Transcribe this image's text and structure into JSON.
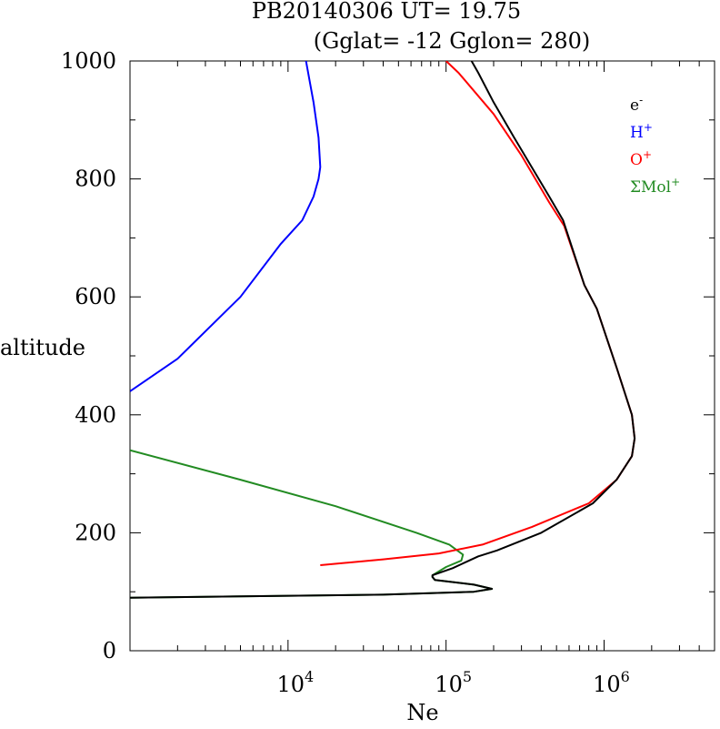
{
  "chart_data": {
    "type": "line",
    "title": "PB20140306   UT=  19.75",
    "subtitle": "(Gglat= -12   Gglon=  280)",
    "xlabel": "Ne",
    "ylabel": "altitude",
    "x_scale": "log",
    "xlim": [
      1000,
      5000000
    ],
    "ylim": [
      0,
      1000
    ],
    "y_ticks": [
      0,
      200,
      400,
      600,
      800,
      1000
    ],
    "y_tick_labels": [
      "0",
      "200",
      "400",
      "600",
      "800",
      "1000"
    ],
    "x_ticks": [
      {
        "value": 10000,
        "base": "10",
        "exp": "4"
      },
      {
        "value": 100000,
        "base": "10",
        "exp": "5"
      },
      {
        "value": 1000000,
        "base": "10",
        "exp": "6"
      }
    ],
    "grid": false,
    "legend_position": "top-right",
    "series": [
      {
        "name": "e",
        "superscript": "-",
        "color": "#000000",
        "points": [
          [
            1000,
            90
          ],
          [
            40000,
            95
          ],
          [
            150000,
            100
          ],
          [
            195000,
            105
          ],
          [
            150000,
            112
          ],
          [
            85000,
            120
          ],
          [
            82000,
            125
          ],
          [
            82000,
            128
          ],
          [
            110000,
            140
          ],
          [
            160000,
            160
          ],
          [
            210000,
            170
          ],
          [
            400000,
            200
          ],
          [
            850000,
            250
          ],
          [
            1200000,
            290
          ],
          [
            1500000,
            330
          ],
          [
            1560000,
            360
          ],
          [
            1500000,
            400
          ],
          [
            1200000,
            480
          ],
          [
            900000,
            580
          ],
          [
            750000,
            620
          ],
          [
            550000,
            730
          ],
          [
            450000,
            770
          ],
          [
            270000,
            870
          ],
          [
            200000,
            930
          ],
          [
            160000,
            980
          ],
          [
            145000,
            1000
          ]
        ]
      },
      {
        "name": "H",
        "superscript": "+",
        "color": "#0000ff",
        "points": [
          [
            1000,
            440
          ],
          [
            2000,
            495
          ],
          [
            5000,
            600
          ],
          [
            9000,
            690
          ],
          [
            12300,
            730
          ],
          [
            14500,
            770
          ],
          [
            15600,
            800
          ],
          [
            16000,
            820
          ],
          [
            15600,
            870
          ],
          [
            14500,
            930
          ],
          [
            13000,
            1000
          ]
        ]
      },
      {
        "name": "O",
        "superscript": "+",
        "color": "#ff0000",
        "points": [
          [
            16000,
            145
          ],
          [
            40000,
            155
          ],
          [
            90000,
            165
          ],
          [
            170000,
            180
          ],
          [
            350000,
            210
          ],
          [
            800000,
            250
          ],
          [
            1200000,
            290
          ],
          [
            1500000,
            330
          ],
          [
            1560000,
            360
          ],
          [
            1500000,
            400
          ],
          [
            1200000,
            480
          ],
          [
            900000,
            580
          ],
          [
            750000,
            620
          ],
          [
            560000,
            720
          ],
          [
            450000,
            760
          ],
          [
            300000,
            840
          ],
          [
            200000,
            910
          ],
          [
            120000,
            980
          ],
          [
            100000,
            1000
          ]
        ]
      },
      {
        "name": "ΣMol",
        "superscript": "+",
        "color": "#228b22",
        "points": [
          [
            1000,
            340
          ],
          [
            5000,
            290
          ],
          [
            20000,
            245
          ],
          [
            65000,
            200
          ],
          [
            105000,
            180
          ],
          [
            128000,
            163
          ],
          [
            125000,
            153
          ],
          [
            100000,
            142
          ],
          [
            82000,
            128
          ],
          [
            82000,
            125
          ],
          [
            85000,
            120
          ],
          [
            150000,
            112
          ],
          [
            195000,
            105
          ],
          [
            150000,
            100
          ],
          [
            40000,
            95
          ],
          [
            1000,
            90
          ]
        ]
      }
    ]
  }
}
